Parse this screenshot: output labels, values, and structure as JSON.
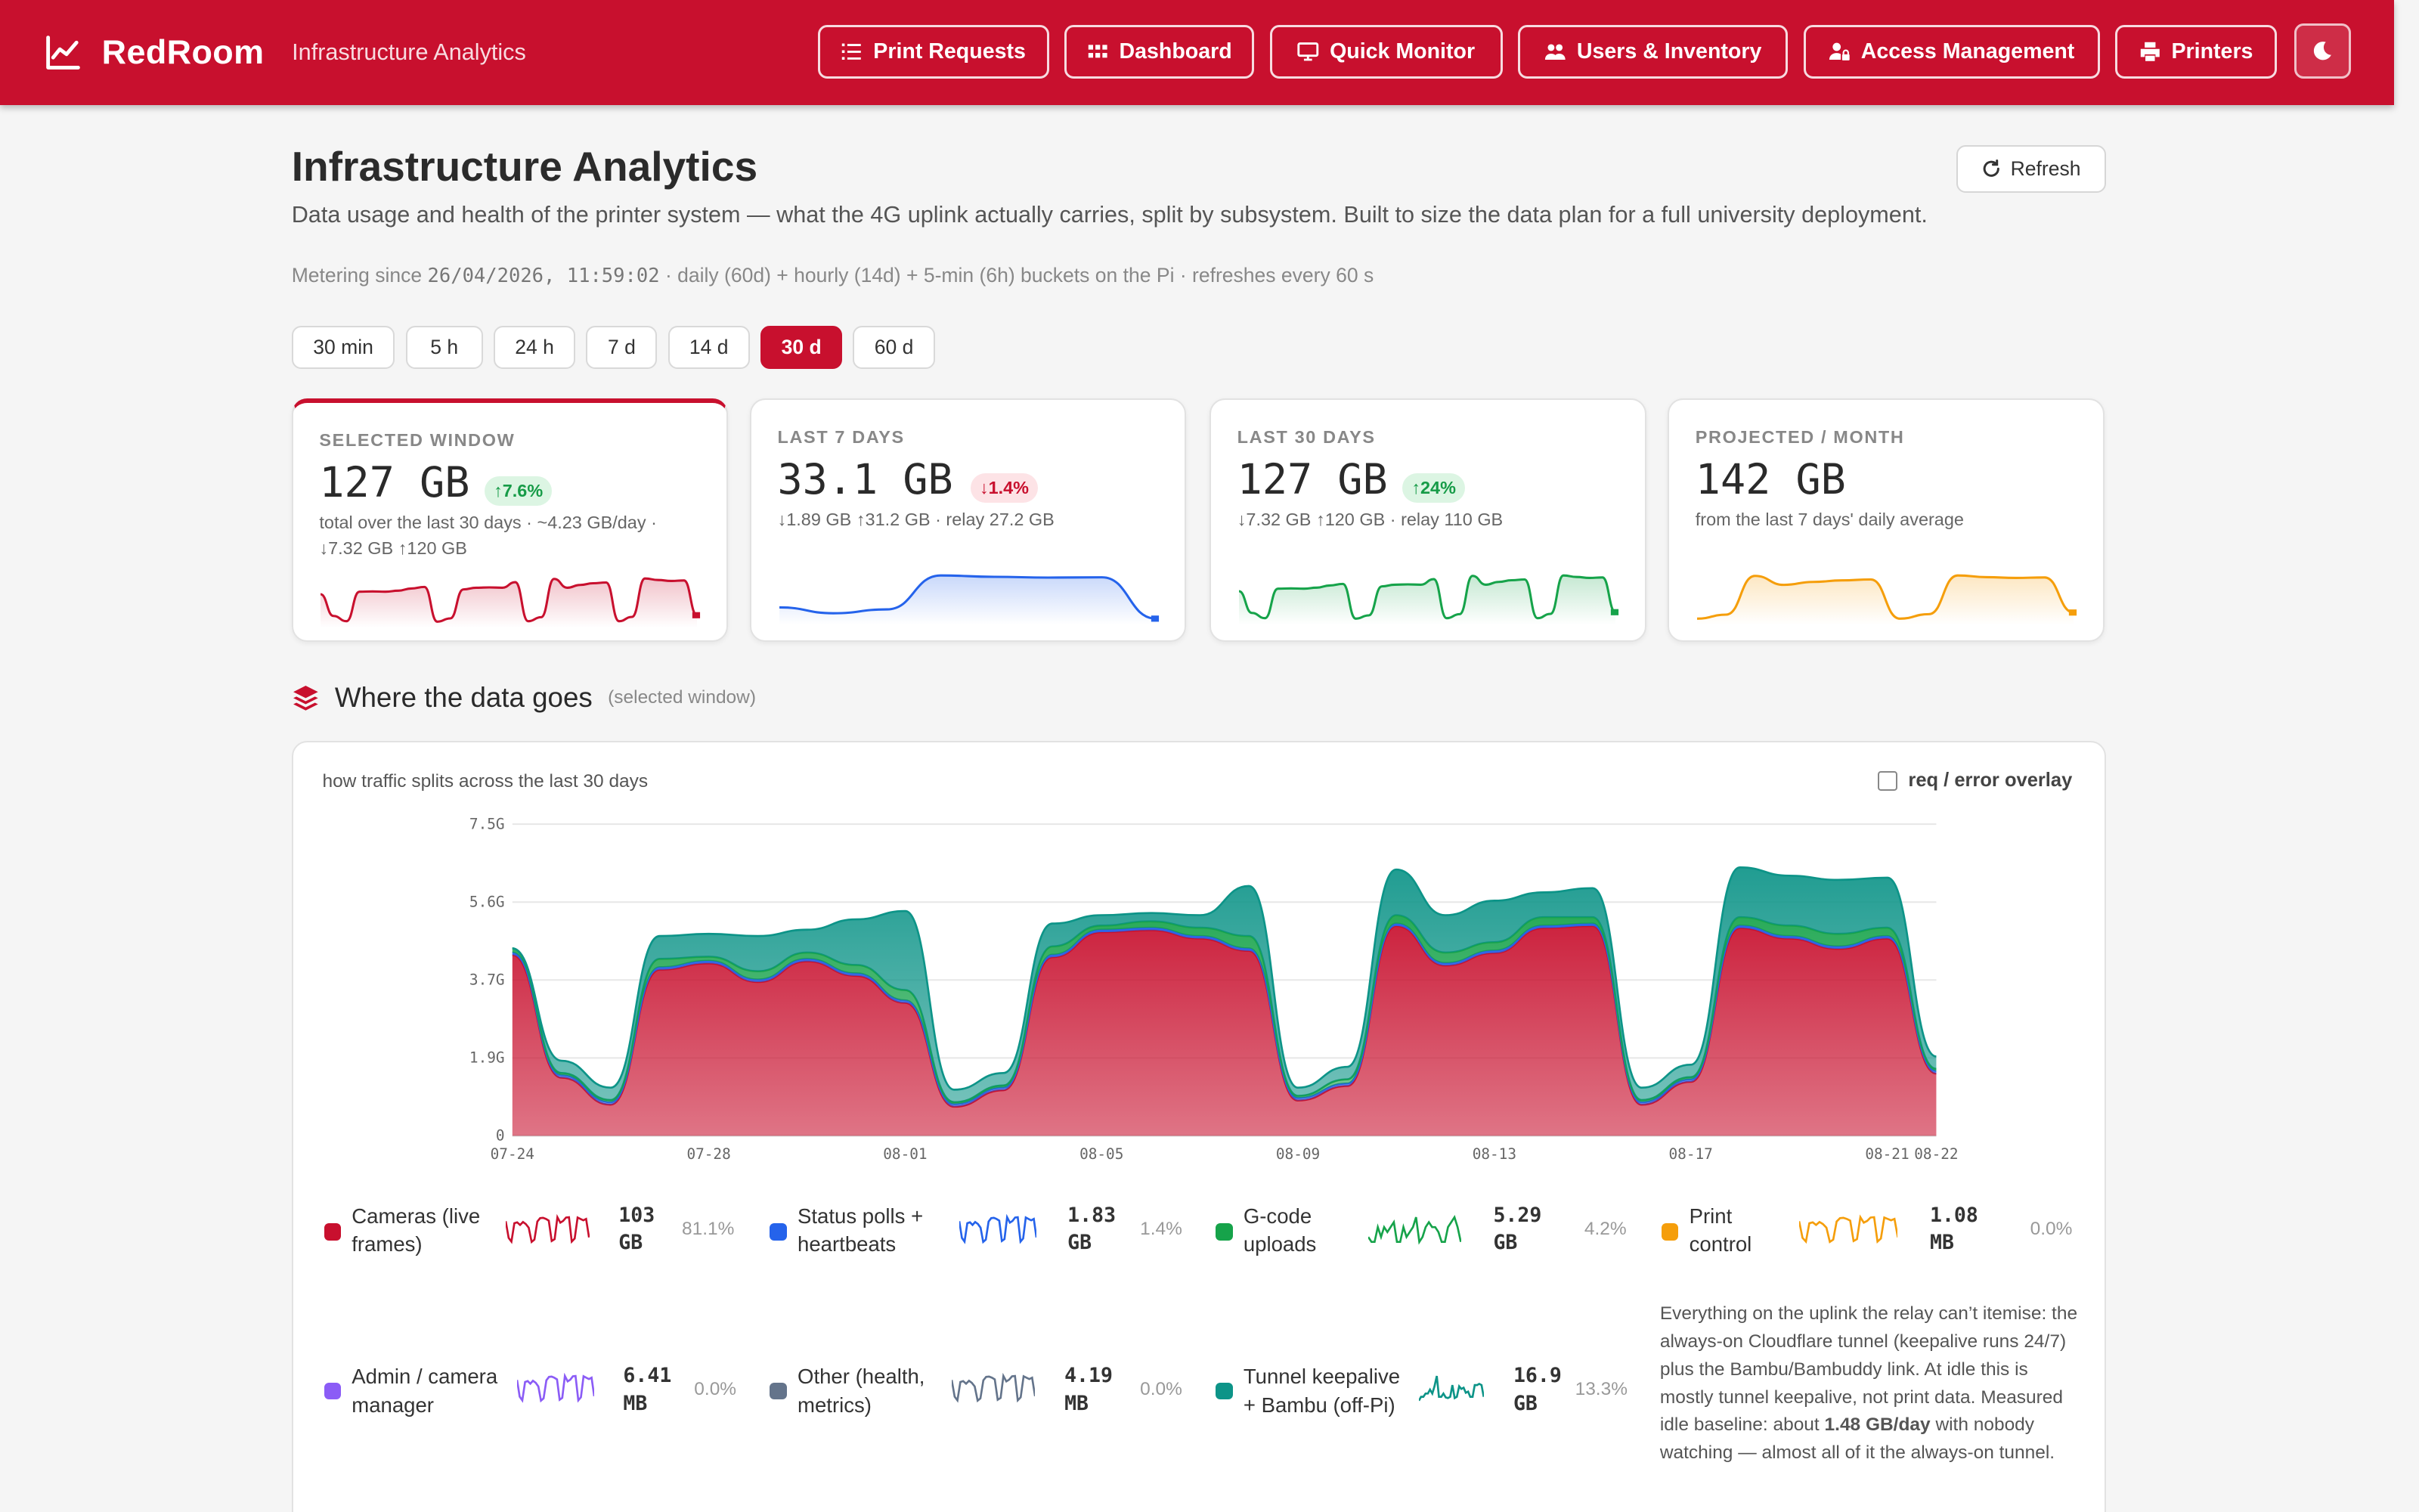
{
  "app": {
    "name": "RedRoom",
    "subtitle": "Infrastructure Analytics"
  },
  "nav": [
    {
      "label": "Print Requests",
      "icon": "list-icon"
    },
    {
      "label": "Dashboard",
      "icon": "grid-icon"
    },
    {
      "label": "Quick Monitor",
      "icon": "monitor-icon"
    },
    {
      "label": "Users & Inventory",
      "icon": "users-icon"
    },
    {
      "label": "Access Management",
      "icon": "user-lock-icon"
    },
    {
      "label": "Printers",
      "icon": "printer-icon"
    }
  ],
  "page": {
    "title": "Infrastructure Analytics",
    "description": "Data usage and health of the printer system — what the 4G uplink actually carries, split by subsystem. Built to size the data plan for a full university deployment.",
    "metering_prefix": "Metering since",
    "metering_date": "26/04/2026, 11:59:02",
    "metering_suffix": "· daily (60d) + hourly (14d) + 5-min (6h) buckets on the Pi · refreshes every 60 s",
    "refresh_label": "Refresh"
  },
  "ranges": [
    "30 min",
    "5 h",
    "24 h",
    "7 d",
    "14 d",
    "30 d",
    "60 d"
  ],
  "active_range": "30 d",
  "cards": [
    {
      "label": "SELECTED WINDOW",
      "value": "127 GB",
      "badge": "↑7.6%",
      "badge_dir": "up",
      "sub": "total over the last 30 days · ~4.23 GB/day · ↓7.32 GB ↑120 GB",
      "color": "#c8102e"
    },
    {
      "label": "LAST 7 DAYS",
      "value": "33.1 GB",
      "badge": "↓1.4%",
      "badge_dir": "down",
      "sub": "↓1.89 GB ↑31.2 GB · relay 27.2 GB",
      "color": "#2563eb"
    },
    {
      "label": "LAST 30 DAYS",
      "value": "127 GB",
      "badge": "↑24%",
      "badge_dir": "up",
      "sub": "↓7.32 GB ↑120 GB · relay 110 GB",
      "color": "#16a34a"
    },
    {
      "label": "PROJECTED / MONTH",
      "value": "142 GB",
      "badge": "",
      "badge_dir": "",
      "sub": "from the last 7 days' daily average",
      "color": "#f59e0b"
    }
  ],
  "section": {
    "title": "Where the data goes",
    "subtitle": "(selected window)"
  },
  "panel": {
    "title": "how traffic splits across the last 30 days",
    "overlay_label": "req / error overlay"
  },
  "legend": [
    {
      "name": "Cameras (live frames)",
      "value": "103 GB",
      "pct": "81.1%",
      "color": "#c8102e"
    },
    {
      "name": "Status polls + heartbeats",
      "value": "1.83 GB",
      "pct": "1.4%",
      "color": "#2563eb"
    },
    {
      "name": "G-code uploads",
      "value": "5.29 GB",
      "pct": "4.2%",
      "color": "#16a34a"
    },
    {
      "name": "Print control",
      "value": "1.08 MB",
      "pct": "0.0%",
      "color": "#f59e0b"
    },
    {
      "name": "Admin / camera manager",
      "value": "6.41 MB",
      "pct": "0.0%",
      "color": "#8b5cf6"
    },
    {
      "name": "Other (health, metrics)",
      "value": "4.19 MB",
      "pct": "0.0%",
      "color": "#64748b"
    },
    {
      "name": "Tunnel keepalive + Bambu (off-Pi)",
      "value": "16.9 GB",
      "pct": "13.3%",
      "color": "#0d9488"
    }
  ],
  "note": {
    "text_before": "Everything on the uplink the relay can’t itemise: the always-on Cloudflare tunnel (keepalive runs 24/7) plus the Bambu/Bambuddy link. At idle this is mostly tunnel keepalive, not print data. Measured idle baseline: about",
    "emphasis": "1.48 GB/day",
    "text_after": "with nobody watching — almost all of it the always-on tunnel."
  },
  "chart_data": {
    "type": "area",
    "stacked": true,
    "y_tick_labels": [
      "0",
      "1.9G",
      "3.7G",
      "5.6G",
      "7.5G"
    ],
    "ylim": [
      0,
      7.5
    ],
    "ylabel_unit": "G",
    "x_tick_labels": [
      "07-24",
      "07-28",
      "08-01",
      "08-05",
      "08-09",
      "08-13",
      "08-17",
      "08-21",
      "08-22"
    ],
    "x": [
      "07-24",
      "07-25",
      "07-26",
      "07-27",
      "07-28",
      "07-29",
      "07-30",
      "07-31",
      "08-01",
      "08-02",
      "08-03",
      "08-04",
      "08-05",
      "08-06",
      "08-07",
      "08-08",
      "08-09",
      "08-10",
      "08-11",
      "08-12",
      "08-13",
      "08-14",
      "08-15",
      "08-16",
      "08-17",
      "08-18",
      "08-19",
      "08-20",
      "08-21",
      "08-22"
    ],
    "series": [
      {
        "name": "Cameras (live frames)",
        "color": "#c8102e",
        "values": [
          4.35,
          1.4,
          0.75,
          4.0,
          4.15,
          3.7,
          4.2,
          3.85,
          3.2,
          0.7,
          1.1,
          4.3,
          4.9,
          4.95,
          4.75,
          4.45,
          0.85,
          1.2,
          5.05,
          4.1,
          4.4,
          5.0,
          5.05,
          0.75,
          1.3,
          5.0,
          4.75,
          4.5,
          4.75,
          1.5
        ]
      },
      {
        "name": "Status polls + heartbeats",
        "color": "#2563eb",
        "values": [
          0.06,
          0.06,
          0.06,
          0.06,
          0.06,
          0.06,
          0.06,
          0.06,
          0.06,
          0.06,
          0.06,
          0.06,
          0.06,
          0.06,
          0.06,
          0.06,
          0.06,
          0.06,
          0.06,
          0.06,
          0.06,
          0.06,
          0.06,
          0.06,
          0.06,
          0.06,
          0.06,
          0.06,
          0.06,
          0.06
        ]
      },
      {
        "name": "G-code uploads",
        "color": "#16a34a",
        "values": [
          0.1,
          0.05,
          0.05,
          0.2,
          0.1,
          0.2,
          0.15,
          0.2,
          0.25,
          0.05,
          0.05,
          0.2,
          0.1,
          0.15,
          0.2,
          0.3,
          0.05,
          0.1,
          0.2,
          0.25,
          0.2,
          0.2,
          0.15,
          0.05,
          0.05,
          0.2,
          0.25,
          0.3,
          0.2,
          0.05
        ]
      },
      {
        "name": "Print control",
        "color": "#f59e0b",
        "values": [
          0,
          0,
          0,
          0,
          0,
          0,
          0,
          0,
          0,
          0,
          0,
          0,
          0,
          0,
          0,
          0,
          0,
          0,
          0,
          0,
          0,
          0,
          0,
          0,
          0,
          0,
          0,
          0,
          0,
          0
        ]
      },
      {
        "name": "Admin / camera manager",
        "color": "#8b5cf6",
        "values": [
          0,
          0,
          0,
          0,
          0,
          0,
          0,
          0,
          0,
          0,
          0,
          0,
          0,
          0,
          0,
          0,
          0,
          0,
          0,
          0,
          0,
          0,
          0,
          0,
          0,
          0,
          0,
          0,
          0,
          0
        ]
      },
      {
        "name": "Other (health, metrics)",
        "color": "#64748b",
        "values": [
          0,
          0,
          0,
          0,
          0,
          0,
          0,
          0,
          0,
          0,
          0,
          0,
          0,
          0,
          0,
          0,
          0,
          0,
          0,
          0,
          0,
          0,
          0,
          0,
          0,
          0,
          0,
          0,
          0,
          0
        ]
      },
      {
        "name": "Tunnel keepalive + Bambu (off-Pi)",
        "color": "#0d9488",
        "values": [
          0.0,
          0.3,
          0.3,
          0.55,
          0.55,
          0.85,
          0.55,
          1.1,
          1.9,
          0.3,
          0.3,
          0.55,
          0.25,
          0.2,
          0.3,
          1.2,
          0.2,
          0.3,
          1.1,
          0.9,
          1.0,
          0.6,
          0.7,
          0.3,
          0.3,
          1.2,
          1.2,
          1.3,
          1.2,
          0.3
        ]
      }
    ]
  }
}
